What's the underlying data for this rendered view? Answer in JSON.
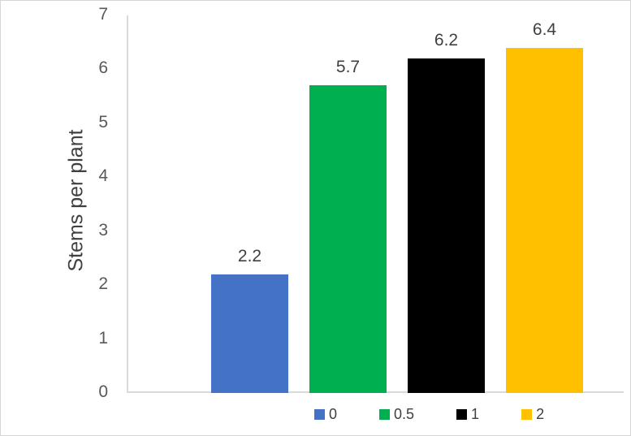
{
  "chart_data": {
    "type": "bar",
    "title": "",
    "categories": [
      "0",
      "0.5",
      "1",
      "2"
    ],
    "values": [
      2.2,
      5.7,
      6.2,
      6.4
    ],
    "data_labels": [
      "2.2",
      "5.7",
      "6.2",
      "6.4"
    ],
    "series_colors": [
      "#4472C4",
      "#00B050",
      "#000000",
      "#FFC000"
    ],
    "xlabel": "",
    "ylabel": "Stems per plant",
    "ylim": [
      0,
      7
    ],
    "yticks": [
      "0",
      "1",
      "2",
      "3",
      "4",
      "5",
      "6",
      "7"
    ],
    "grid": false,
    "legend": {
      "position": "bottom",
      "entries": [
        {
          "label": "0",
          "color": "#4472C4"
        },
        {
          "label": "0.5",
          "color": "#00B050"
        },
        {
          "label": "1",
          "color": "#000000"
        },
        {
          "label": "2",
          "color": "#FFC000"
        }
      ]
    },
    "axis_line_color": "#D9D9D9",
    "tick_label_color": "#595959",
    "data_label_color": "#404040",
    "ylabel_color": "#404040",
    "legend_text_color": "#404040",
    "background_color": "#FFFFFF"
  }
}
